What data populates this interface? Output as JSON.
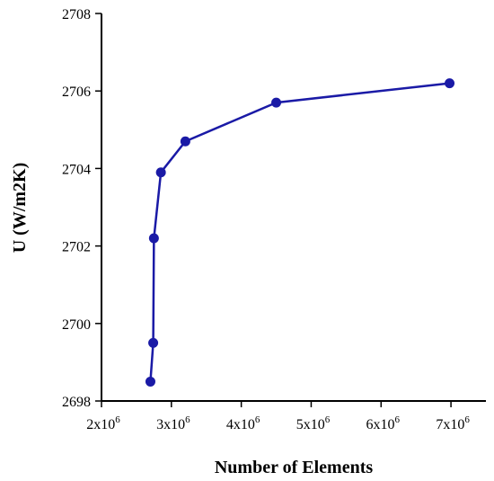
{
  "chart_data": {
    "type": "line",
    "title": "",
    "xlabel": "Number of Elements",
    "ylabel": "U (W/m2K)",
    "xlim": [
      2000000,
      7500000
    ],
    "ylim": [
      2698,
      2708
    ],
    "x_ticks": [
      2000000,
      3000000,
      4000000,
      5000000,
      6000000,
      7000000
    ],
    "x_tick_labels": [
      {
        "base": "2x10",
        "exp": "6"
      },
      {
        "base": "3x10",
        "exp": "6"
      },
      {
        "base": "4x10",
        "exp": "6"
      },
      {
        "base": "5x10",
        "exp": "6"
      },
      {
        "base": "6x10",
        "exp": "6"
      },
      {
        "base": "7x10",
        "exp": "6"
      }
    ],
    "y_ticks": [
      2698,
      2700,
      2702,
      2704,
      2706,
      2708
    ],
    "y_tick_labels": [
      "2698",
      "2700",
      "2702",
      "2704",
      "2706",
      "2708"
    ],
    "grid": false,
    "legend": "none",
    "series": [
      {
        "color": "#1a1aa6",
        "x": [
          2700000,
          2740000,
          2750000,
          2850000,
          3200000,
          4500000,
          6980000
        ],
        "y": [
          2698.5,
          2699.5,
          2702.2,
          2703.9,
          2704.7,
          2705.7,
          2706.2
        ]
      }
    ]
  }
}
